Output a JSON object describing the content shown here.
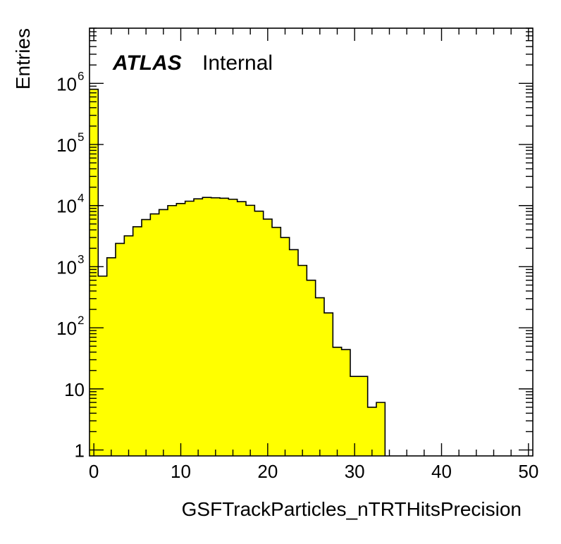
{
  "chart_data": {
    "type": "bar",
    "style": "filled-step-histogram",
    "fill_color": "#ffff00",
    "line_color": "#000000",
    "xlabel": "GSFTrackParticles_nTRTHitsPrecision",
    "ylabel": "Entries",
    "label_main": "ATLAS",
    "label_sub": "Internal",
    "xlim": [
      -0.5,
      50.5
    ],
    "ylim": [
      0.8,
      8000000
    ],
    "yscale": "log",
    "grid": false,
    "x_ticks": [
      0,
      10,
      20,
      30,
      40,
      50
    ],
    "x_tick_labels": [
      "0",
      "10",
      "20",
      "30",
      "40",
      "50"
    ],
    "y_ticks": [
      {
        "value": 1,
        "base": "1",
        "exp": ""
      },
      {
        "value": 10,
        "base": "10",
        "exp": ""
      },
      {
        "value": 100,
        "base": "10",
        "exp": "2"
      },
      {
        "value": 1000,
        "base": "10",
        "exp": "3"
      },
      {
        "value": 10000,
        "base": "10",
        "exp": "4"
      },
      {
        "value": 100000,
        "base": "10",
        "exp": "5"
      },
      {
        "value": 1000000,
        "base": "10",
        "exp": "6"
      }
    ],
    "bin_edges_start": -0.5,
    "bin_width": 1,
    "values": [
      800000,
      700,
      1400,
      2400,
      3200,
      4500,
      5900,
      7300,
      8600,
      10000,
      10800,
      11800,
      12900,
      13600,
      13400,
      13200,
      12700,
      11600,
      10100,
      8100,
      6000,
      4400,
      3000,
      1900,
      1050,
      600,
      310,
      175,
      48,
      44,
      16,
      16,
      5,
      6
    ]
  }
}
